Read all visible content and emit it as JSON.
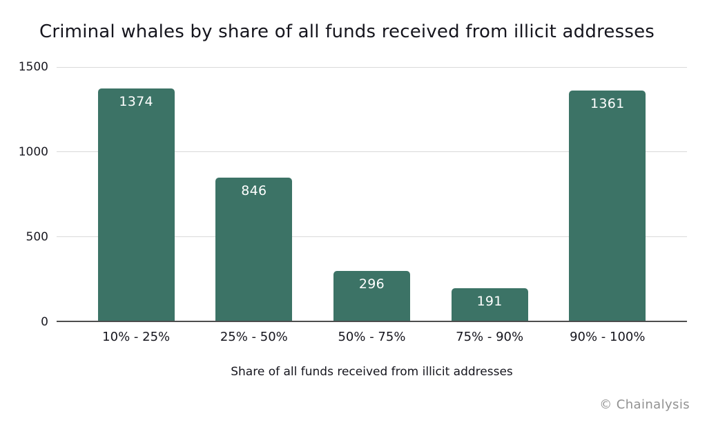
{
  "page": {
    "background_color": "#ffffff"
  },
  "title": "Criminal whales by share of all funds received from illicit addresses",
  "footer": {
    "credit": "© Chainalysis"
  },
  "chart_data": {
    "type": "bar",
    "title": "Criminal whales by share of all funds received from illicit addresses",
    "categories": [
      "10% - 25%",
      "25% - 50%",
      "50% - 75%",
      "75% - 90%",
      "90% - 100%"
    ],
    "values": [
      1374,
      846,
      296,
      191,
      1361
    ],
    "value_labels": [
      "1374",
      "846",
      "296",
      "191",
      "1361"
    ],
    "xlabel": "Share of all funds received from illicit addresses",
    "ylabel": "",
    "ylim": [
      0,
      1500
    ],
    "yticks": [
      0,
      500,
      1000,
      1500
    ],
    "grid": true,
    "legend": false,
    "bar_color": "#3c7366",
    "value_label_color": "#ffffff",
    "gridline_color": "#d9d9d9",
    "axis_line_color": "#4d4d4d",
    "text_color": "#15151d",
    "credit_color": "#919191"
  }
}
